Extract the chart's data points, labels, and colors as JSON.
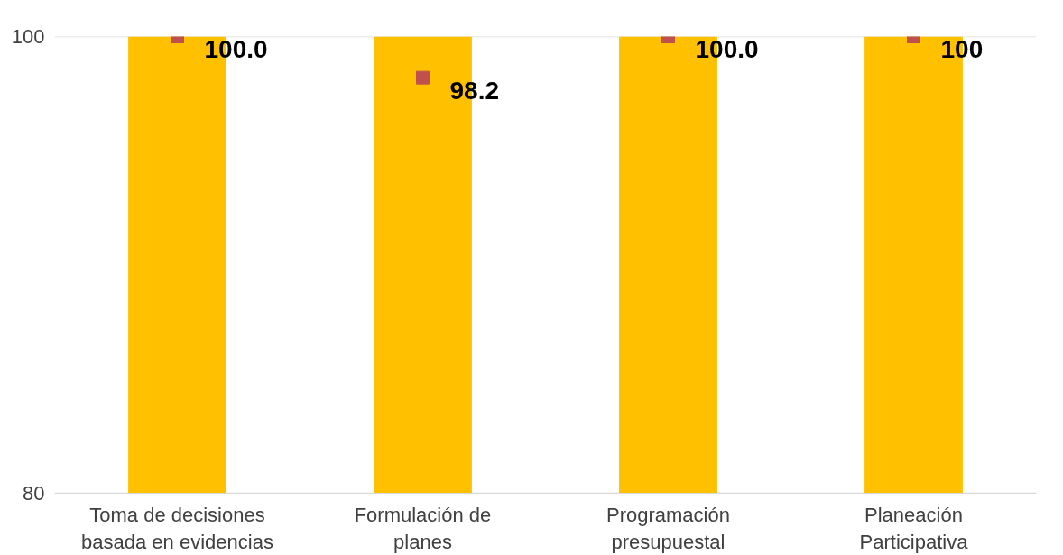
{
  "chart_data": {
    "type": "bar",
    "categories": [
      "Toma de decisiones basada en evidencias",
      "Formulación de planes",
      "Programación presupuestal",
      "Planeación Participativa"
    ],
    "series": [
      {
        "color": "#ffc000",
        "values": [
          100,
          100,
          100,
          100
        ]
      },
      {
        "type": "scatter",
        "color": "#c0504d",
        "x": [
          "Toma de decisiones basada en evidencias",
          "Formulación de planes",
          "Programación presupuestal",
          "Planeación Participativa"
        ],
        "values": [
          100,
          98.2,
          100,
          100
        ],
        "value_labels": [
          "100.0",
          "98.2",
          "100.0",
          "100"
        ]
      }
    ],
    "marker": "square",
    "ylim": [
      80,
      100
    ],
    "yticks": [
      80,
      100
    ],
    "grid": "y"
  }
}
